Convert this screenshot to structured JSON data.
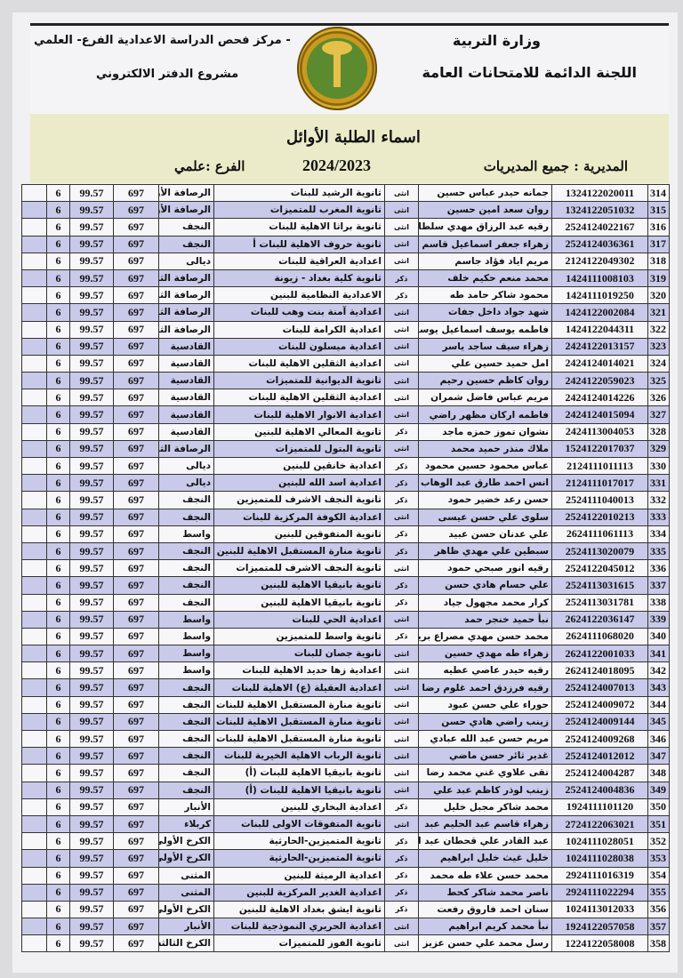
{
  "header": {
    "ministry": "وزارة التربية",
    "committee": "اللجنة الدائمة للامتحانات العامة",
    "center": "- مركز فحص الدراسة الاعدادية الفرع- العلمي",
    "project": "مشروع الدفتر الالكتروني",
    "title": "اسماء الطلبة الأوائل",
    "directorate": "المديرية : جميع المديريات",
    "year": "2024/2023",
    "branch": "الفرع :علمي"
  },
  "colors": {
    "row_shade": "#c9c9ea",
    "band": "#ecebc9",
    "logo_gold": "#c99a1e",
    "logo_green": "#5c8a2e"
  },
  "rows": [
    [
      "314",
      "1324122020011",
      "جمانه حيدر عباس حسين",
      "انثى",
      "ثانوية الرشيد للبنات",
      "الرصافة الأولى",
      "697",
      "99.57",
      "6"
    ],
    [
      "315",
      "1324122051032",
      "روان سعد امين حسين",
      "انثى",
      "ثانوية المغرب للمتميزات",
      "الرصافة الأولى",
      "697",
      "99.57",
      "6"
    ],
    [
      "316",
      "2524124022167",
      "رقيه عبد الرزاق مهدي سلطان",
      "انثى",
      "ثانوية براثا الاهلية للبنات",
      "النجف",
      "697",
      "99.57",
      "6"
    ],
    [
      "317",
      "2524124036361",
      "زهراء جعفر اسماعيل قاسم",
      "انثى",
      "ثانوية حروف الاهلية للبنات أ",
      "النجف",
      "697",
      "99.57",
      "6"
    ],
    [
      "318",
      "2124122049302",
      "مريم اياد فؤاد جاسم",
      "انثى",
      "اعدادية العراقية للبنات",
      "ديالى",
      "697",
      "99.57",
      "6"
    ],
    [
      "319",
      "1424111008103",
      "محمد منعم حكيم خلف",
      "ذكر",
      "ثانوية كلية بغداد - زيونة",
      "الرصافة الثانية",
      "697",
      "99.57",
      "6"
    ],
    [
      "320",
      "1424111019250",
      "محمود شاكر حامد طه",
      "ذكر",
      "الاعدادية النظامية للبنين",
      "الرصافة الثانية",
      "697",
      "99.57",
      "6"
    ],
    [
      "321",
      "1424122002084",
      "شهد جواد داخل جفات",
      "انثى",
      "اعدادية آمنة بنت وهب للبنات",
      "الرصافة الثانية",
      "697",
      "99.57",
      "6"
    ],
    [
      "322",
      "1424122044311",
      "فاطمه يوسف اسماعيل يوسف",
      "انثى",
      "اعدادية الكرامة للبنات",
      "الرصافة الثانية",
      "697",
      "99.57",
      "6"
    ],
    [
      "323",
      "2424122013157",
      "زهراء سيف ساجد ياسر",
      "انثى",
      "اعدادية ميسلون للبنات",
      "القادسية",
      "697",
      "99.57",
      "6"
    ],
    [
      "324",
      "2424124014021",
      "امل حميد حسين علي",
      "انثى",
      "اعدادية الثقلين الاهلية للبنات",
      "القادسية",
      "697",
      "99.57",
      "6"
    ],
    [
      "325",
      "2424122059023",
      "روان كاظم حسين رحيم",
      "انثى",
      "ثانوية الديوانية للمتميزات",
      "القادسية",
      "697",
      "99.57",
      "6"
    ],
    [
      "326",
      "2424124014226",
      "مريم عباس فاضل شمران",
      "انثى",
      "اعدادية الثقلين الاهلية للبنات",
      "القادسية",
      "697",
      "99.57",
      "6"
    ],
    [
      "327",
      "2424124015094",
      "فاطمه اركان مظهر راضي",
      "انثى",
      "اعدادية الانوار الاهلية للبنات",
      "القادسية",
      "697",
      "99.57",
      "6"
    ],
    [
      "328",
      "2424113004053",
      "نشوان تموز حمزه ماجد",
      "ذكر",
      "ثانوية المعالي الاهلية للبنين",
      "القادسية",
      "697",
      "99.57",
      "6"
    ],
    [
      "329",
      "1524122017037",
      "ملاك منذر حميد محمد",
      "انثى",
      "ثانوية البتول للمتميزات",
      "الرصافة الثالثة",
      "697",
      "99.57",
      "6"
    ],
    [
      "330",
      "2124111011113",
      "عباس محمود حسين محمود",
      "ذكر",
      "اعدادية خانقين للبنين",
      "ديالى",
      "697",
      "99.57",
      "6"
    ],
    [
      "331",
      "2124111017017",
      "انس احمد طارق عبد الوهاب",
      "ذكر",
      "اعدادية اسد الله للبنين",
      "ديالى",
      "697",
      "99.57",
      "6"
    ],
    [
      "332",
      "2524111040013",
      "حسن رعد خضير حمود",
      "ذكر",
      "ثانوية النجف الاشرف للمتميزين",
      "النجف",
      "697",
      "99.57",
      "6"
    ],
    [
      "333",
      "2524122010213",
      "سلوى علي حسن عيسى",
      "انثى",
      "اعدادية الكوفة المركزية للبنات",
      "النجف",
      "697",
      "99.57",
      "6"
    ],
    [
      "334",
      "2624111061113",
      "علي عدنان حسن عبيد",
      "ذكر",
      "ثانوية المتفوقين للبنين",
      "واسط",
      "697",
      "99.57",
      "6"
    ],
    [
      "335",
      "2524113020079",
      "سبطين علي مهدي ظاهر",
      "ذكر",
      "ثانوية منارة المستقبل الاهلية للبنين",
      "النجف",
      "697",
      "99.57",
      "6"
    ],
    [
      "336",
      "2524122045012",
      "رقيه انور صبحي حمود",
      "انثى",
      "ثانوية النجف الاشرف للمتميزات",
      "النجف",
      "697",
      "99.57",
      "6"
    ],
    [
      "337",
      "2524113031615",
      "علي حسام هادي حسن",
      "ذكر",
      "ثانوية بانيقيا الاهلية للبنين",
      "النجف",
      "697",
      "99.57",
      "6"
    ],
    [
      "338",
      "2524113031781",
      "كرار محمد مجهول جياد",
      "ذكر",
      "ثانوية بانيقيا الاهلية للبنين",
      "النجف",
      "697",
      "99.57",
      "6"
    ],
    [
      "339",
      "2624122036147",
      "نبأ حميد خنجر حمد",
      "انثى",
      "اعدادية الحي للبنات",
      "واسط",
      "697",
      "99.57",
      "6"
    ],
    [
      "340",
      "2624111068020",
      "محمد حسن مهدي مصراع بريسم",
      "ذكر",
      "ثانوية واسط للمتميزين",
      "واسط",
      "697",
      "99.57",
      "6"
    ],
    [
      "341",
      "2624122001033",
      "زهراء طه مهدي حسين",
      "انثى",
      "ثانوية جصان للبنات",
      "واسط",
      "697",
      "99.57",
      "6"
    ],
    [
      "342",
      "2624124018095",
      "رقيه حيدر عاصي عطيه",
      "انثى",
      "اعدادية زها حديد الاهلية للبنات",
      "واسط",
      "697",
      "99.57",
      "6"
    ],
    [
      "343",
      "2524124007013",
      "رقيه فرزدق احمد غلوم رضا",
      "انثى",
      "اعدادية العقيلة (ع) الاهلية للبنات",
      "النجف",
      "697",
      "99.57",
      "6"
    ],
    [
      "344",
      "2524124009072",
      "حوراء علي حسن عبود",
      "انثى",
      "ثانوية منارة المستقبل الاهلية للبنات",
      "النجف",
      "697",
      "99.57",
      "6"
    ],
    [
      "345",
      "2524124009144",
      "زينب راضي هادي حسن",
      "انثى",
      "ثانوية منارة المستقبل الاهلية للبنات",
      "النجف",
      "697",
      "99.57",
      "6"
    ],
    [
      "346",
      "2524124009268",
      "مريم حسن عبد الله عبادي",
      "انثى",
      "ثانوية منارة المستقبل الاهلية للبنات",
      "النجف",
      "697",
      "99.57",
      "6"
    ],
    [
      "347",
      "2524124012012",
      "غدير ثائر حسن ماضي",
      "انثى",
      "ثانوية الرباب الاهلية الخيرية للبنات",
      "النجف",
      "697",
      "99.57",
      "6"
    ],
    [
      "348",
      "2524124004287",
      "تقى علاوي غني محمد رضا",
      "انثى",
      "ثانوية بانيقيا الاهلية للبنات (أ)",
      "النجف",
      "697",
      "99.57",
      "6"
    ],
    [
      "349",
      "2524124004836",
      "زينب لوذر كاظم عبد علي",
      "انثى",
      "ثانوية بانيقيا الاهلية للبنات (أ)",
      "النجف",
      "697",
      "99.57",
      "6"
    ],
    [
      "350",
      "1924111101120",
      "محمد شاكر مجبل خليل",
      "ذكر",
      "اعدادية البخاري للبنين",
      "الأنبار",
      "697",
      "99.57",
      "6"
    ],
    [
      "351",
      "2724122063021",
      "زهراء قاسم عبد الحليم عبد",
      "انثى",
      "ثانوية المتفوقات الاولى للبنات",
      "كربلاء",
      "697",
      "99.57",
      "6"
    ],
    [
      "352",
      "1024111028051",
      "عبد القادر علي قحطان عبد القادر",
      "ذكر",
      "ثانوية المتميزين-الحارثية",
      "الكرخ الأولى",
      "697",
      "99.57",
      "6"
    ],
    [
      "353",
      "1024111028038",
      "خليل غيث خليل ابراهيم",
      "ذكر",
      "ثانوية المتميزين-الحارثية",
      "الكرخ الأولى",
      "697",
      "99.57",
      "6"
    ],
    [
      "354",
      "2924111016319",
      "محمد حسن علاء طه محمد",
      "ذكر",
      "اعدادية الرميثة للبنين",
      "المثنى",
      "697",
      "99.57",
      "6"
    ],
    [
      "355",
      "2924111022294",
      "ناصر محمد شاكر كحط",
      "ذكر",
      "اعدادية الغدير المركزية للبنين",
      "المثنى",
      "697",
      "99.57",
      "6"
    ],
    [
      "356",
      "1024113012033",
      "سنان احمد فاروق رفعت",
      "ذكر",
      "ثانوية ايشق بغداد الاهلية للبنين",
      "الكرخ الأولى",
      "697",
      "99.57",
      "6"
    ],
    [
      "357",
      "1924122057058",
      "نبأ محمد كريم ابراهيم",
      "انثى",
      "اعدادية الحريري النموذجية للبنات",
      "الأنبار",
      "697",
      "99.57",
      "6"
    ],
    [
      "358",
      "1224122058008",
      "رسل محمد علي حسن عزيز",
      "انثى",
      "ثانوية الفوز للمتميزات",
      "الكرخ الثالثة",
      "697",
      "99.57",
      "6"
    ]
  ]
}
